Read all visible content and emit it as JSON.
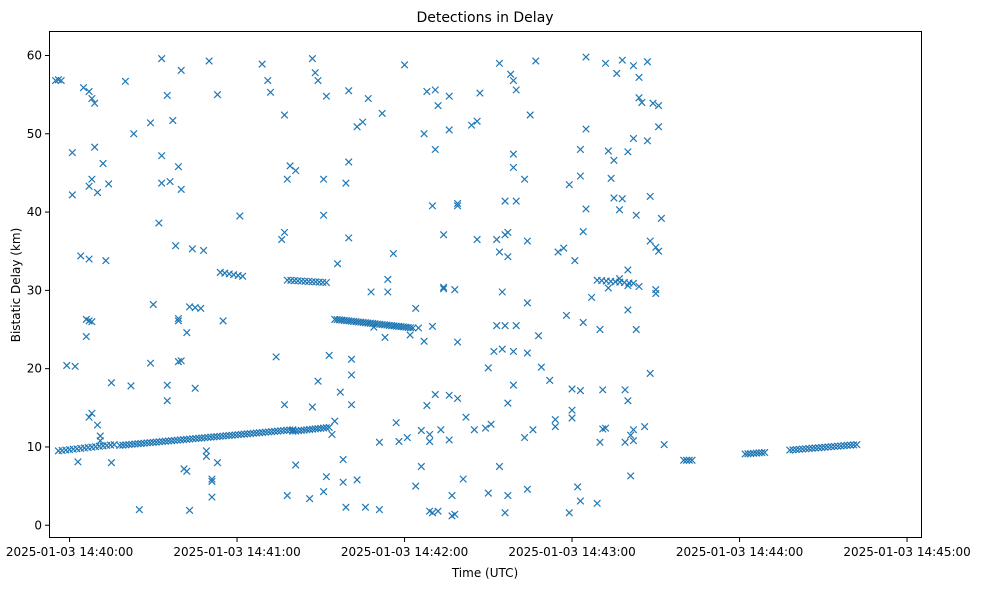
{
  "chart_data": {
    "type": "scatter",
    "title": "Detections in Delay",
    "xlabel": "Time (UTC)",
    "ylabel": "Bistatic Delay (km)",
    "marker": "x",
    "marker_color": "#1f77b4",
    "x_unit": "seconds after 2025-01-03 14:39:53",
    "xlim": [
      "2025-01-03 14:39:53",
      "2025-01-03 14:45:05"
    ],
    "ylim": [
      -1.5,
      63
    ],
    "x_ticks": [
      {
        "value": "2025-01-03 14:40:00",
        "label": "2025-01-03 14:40:00"
      },
      {
        "value": "2025-01-03 14:41:00",
        "label": "2025-01-03 14:41:00"
      },
      {
        "value": "2025-01-03 14:42:00",
        "label": "2025-01-03 14:42:00"
      },
      {
        "value": "2025-01-03 14:43:00",
        "label": "2025-01-03 14:43:00"
      },
      {
        "value": "2025-01-03 14:44:00",
        "label": "2025-01-03 14:44:00"
      },
      {
        "value": "2025-01-03 14:45:00",
        "label": "2025-01-03 14:45:00"
      }
    ],
    "y_ticks": [
      {
        "value": 0,
        "label": "0"
      },
      {
        "value": 10,
        "label": "10"
      },
      {
        "value": 20,
        "label": "20"
      },
      {
        "value": 30,
        "label": "30"
      },
      {
        "value": 40,
        "label": "40"
      },
      {
        "value": 50,
        "label": "50"
      },
      {
        "value": 60,
        "label": "60"
      }
    ],
    "grid": false,
    "track_series": [
      {
        "t_start": "2025-01-03 14:39:56",
        "t_end": "2025-01-03 14:40:16",
        "y_start": 9.5,
        "y_end": 10.3,
        "count": 16
      },
      {
        "t_start": "2025-01-03 14:40:18",
        "t_end": "2025-01-03 14:41:20",
        "y_start": 10.2,
        "y_end": 12.2,
        "count": 58
      },
      {
        "t_start": "2025-01-03 14:41:20",
        "t_end": "2025-01-03 14:41:33",
        "y_start": 12.0,
        "y_end": 12.5,
        "count": 14
      },
      {
        "t_start": "2025-01-03 14:41:18",
        "t_end": "2025-01-03 14:41:32",
        "y_start": 31.3,
        "y_end": 31.0,
        "count": 12
      },
      {
        "t_start": "2025-01-03 14:41:35",
        "t_end": "2025-01-03 14:42:03",
        "y_start": 26.3,
        "y_end": 25.2,
        "count": 34
      },
      {
        "t_start": "2025-01-03 14:40:54",
        "t_end": "2025-01-03 14:41:02",
        "y_start": 32.3,
        "y_end": 31.8,
        "count": 6
      },
      {
        "t_start": "2025-01-03 14:43:09",
        "t_end": "2025-01-03 14:43:22",
        "y_start": 31.3,
        "y_end": 30.9,
        "count": 9
      },
      {
        "t_start": "2025-01-03 14:44:02",
        "t_end": "2025-01-03 14:44:09",
        "y_start": 9.1,
        "y_end": 9.3,
        "count": 8
      },
      {
        "t_start": "2025-01-03 14:44:18",
        "t_end": "2025-01-03 14:44:42",
        "y_start": 9.6,
        "y_end": 10.3,
        "count": 22
      },
      {
        "t_start": "2025-01-03 14:43:40",
        "t_end": "2025-01-03 14:43:43",
        "y_start": 8.3,
        "y_end": 8.3,
        "count": 4
      }
    ],
    "points": [
      [
        2,
        56.8
      ],
      [
        3,
        56.9
      ],
      [
        12,
        55.9
      ],
      [
        14,
        55.4
      ],
      [
        15,
        54.5
      ],
      [
        16,
        53.9
      ],
      [
        4,
        56.8
      ],
      [
        6,
        20.4
      ],
      [
        8,
        47.6
      ],
      [
        9,
        20.3
      ],
      [
        11,
        34.4
      ],
      [
        14,
        34.0
      ],
      [
        14,
        43.3
      ],
      [
        15,
        44.2
      ],
      [
        16,
        48.3
      ],
      [
        17,
        42.5
      ],
      [
        19,
        46.2
      ],
      [
        20,
        33.8
      ],
      [
        21,
        43.6
      ],
      [
        8,
        42.2
      ],
      [
        13,
        24.1
      ],
      [
        13,
        26.3
      ],
      [
        14,
        26.1
      ],
      [
        15,
        26.0
      ],
      [
        14,
        13.8
      ],
      [
        15,
        14.3
      ],
      [
        17,
        12.8
      ],
      [
        18,
        11.4
      ],
      [
        18,
        10.8
      ],
      [
        10,
        8.1
      ],
      [
        22,
        18.2
      ],
      [
        22,
        8.0
      ],
      [
        27,
        56.7
      ],
      [
        29,
        17.8
      ],
      [
        30,
        50.0
      ],
      [
        32,
        2.0
      ],
      [
        36,
        51.4
      ],
      [
        36,
        20.7
      ],
      [
        37,
        28.2
      ],
      [
        39,
        38.6
      ],
      [
        40,
        59.6
      ],
      [
        40,
        47.2
      ],
      [
        40,
        43.7
      ],
      [
        42,
        54.9
      ],
      [
        42,
        17.9
      ],
      [
        42,
        15.9
      ],
      [
        43,
        43.9
      ],
      [
        44,
        51.7
      ],
      [
        45,
        35.7
      ],
      [
        46,
        45.8
      ],
      [
        46,
        26.4
      ],
      [
        46,
        26.1
      ],
      [
        46,
        20.9
      ],
      [
        47,
        21.0
      ],
      [
        47,
        58.1
      ],
      [
        47,
        42.9
      ],
      [
        48,
        7.2
      ],
      [
        49,
        24.6
      ],
      [
        49,
        6.9
      ],
      [
        50,
        27.9
      ],
      [
        50,
        1.9
      ],
      [
        51,
        35.3
      ],
      [
        52,
        27.8
      ],
      [
        52,
        17.5
      ],
      [
        54,
        27.7
      ],
      [
        55,
        35.1
      ],
      [
        56,
        9.5
      ],
      [
        56,
        8.8
      ],
      [
        57,
        59.3
      ],
      [
        58,
        5.9
      ],
      [
        58,
        5.6
      ],
      [
        58,
        3.6
      ],
      [
        60,
        55.0
      ],
      [
        60,
        8.0
      ],
      [
        62,
        26.1
      ],
      [
        68,
        39.5
      ],
      [
        76,
        58.9
      ],
      [
        78,
        56.8
      ],
      [
        79,
        55.3
      ],
      [
        81,
        21.5
      ],
      [
        83,
        36.5
      ],
      [
        84,
        37.4
      ],
      [
        84,
        52.4
      ],
      [
        84,
        15.4
      ],
      [
        85,
        3.8
      ],
      [
        85,
        44.2
      ],
      [
        86,
        45.9
      ],
      [
        88,
        45.3
      ],
      [
        88,
        7.7
      ],
      [
        93,
        3.4
      ],
      [
        94,
        59.6
      ],
      [
        94,
        15.1
      ],
      [
        95,
        57.8
      ],
      [
        96,
        56.8
      ],
      [
        96,
        18.4
      ],
      [
        98,
        39.6
      ],
      [
        98,
        44.2
      ],
      [
        99,
        54.8
      ],
      [
        99,
        6.2
      ],
      [
        98,
        4.3
      ],
      [
        100,
        21.7
      ],
      [
        101,
        11.6
      ],
      [
        102,
        13.3
      ],
      [
        103,
        33.4
      ],
      [
        104,
        17.0
      ],
      [
        105,
        8.4
      ],
      [
        105,
        5.5
      ],
      [
        106,
        2.3
      ],
      [
        106,
        43.7
      ],
      [
        107,
        55.5
      ],
      [
        107,
        46.4
      ],
      [
        107,
        36.7
      ],
      [
        108,
        21.2
      ],
      [
        108,
        19.2
      ],
      [
        108,
        15.4
      ],
      [
        110,
        50.9
      ],
      [
        110,
        5.8
      ],
      [
        112,
        51.5
      ],
      [
        113,
        2.3
      ],
      [
        114,
        54.5
      ],
      [
        115,
        29.8
      ],
      [
        116,
        25.3
      ],
      [
        118,
        10.6
      ],
      [
        118,
        2.0
      ],
      [
        119,
        52.6
      ],
      [
        120,
        24.0
      ],
      [
        121,
        31.4
      ],
      [
        121,
        29.8
      ],
      [
        123,
        34.7
      ],
      [
        124,
        13.1
      ],
      [
        125,
        10.7
      ],
      [
        127,
        58.8
      ],
      [
        128,
        11.2
      ],
      [
        129,
        24.3
      ],
      [
        131,
        27.7
      ],
      [
        131,
        5.0
      ],
      [
        132,
        25.2
      ],
      [
        133,
        7.5
      ],
      [
        133,
        12.1
      ],
      [
        134,
        50.0
      ],
      [
        134,
        23.5
      ],
      [
        135,
        55.4
      ],
      [
        135,
        15.3
      ],
      [
        136,
        11.6
      ],
      [
        136,
        10.7
      ],
      [
        137,
        1.6
      ],
      [
        136,
        1.8
      ],
      [
        137,
        25.4
      ],
      [
        137,
        40.8
      ],
      [
        138,
        55.6
      ],
      [
        138,
        48.0
      ],
      [
        138,
        16.7
      ],
      [
        139,
        1.8
      ],
      [
        139,
        53.6
      ],
      [
        140,
        12.2
      ],
      [
        141,
        30.4
      ],
      [
        141,
        30.2
      ],
      [
        141,
        37.1
      ],
      [
        143,
        54.8
      ],
      [
        143,
        50.5
      ],
      [
        143,
        16.6
      ],
      [
        143,
        10.9
      ],
      [
        144,
        3.8
      ],
      [
        144,
        1.2
      ],
      [
        145,
        30.1
      ],
      [
        145,
        1.4
      ],
      [
        146,
        16.2
      ],
      [
        146,
        23.4
      ],
      [
        146,
        40.8
      ],
      [
        146,
        41.1
      ],
      [
        148,
        5.9
      ],
      [
        149,
        13.8
      ],
      [
        151,
        51.1
      ],
      [
        152,
        12.2
      ],
      [
        153,
        36.5
      ],
      [
        153,
        51.6
      ],
      [
        154,
        55.2
      ],
      [
        156,
        12.4
      ],
      [
        157,
        20.1
      ],
      [
        157,
        4.1
      ],
      [
        158,
        12.9
      ],
      [
        159,
        22.2
      ],
      [
        160,
        25.5
      ],
      [
        160,
        36.5
      ],
      [
        161,
        7.5
      ],
      [
        161,
        59.0
      ],
      [
        161,
        34.9
      ],
      [
        162,
        22.5
      ],
      [
        162,
        29.8
      ],
      [
        163,
        1.6
      ],
      [
        163,
        25.5
      ],
      [
        163,
        41.4
      ],
      [
        163,
        37.1
      ],
      [
        164,
        37.4
      ],
      [
        164,
        34.3
      ],
      [
        164,
        3.8
      ],
      [
        164,
        15.6
      ],
      [
        165,
        57.6
      ],
      [
        166,
        47.4
      ],
      [
        166,
        45.7
      ],
      [
        166,
        56.8
      ],
      [
        166,
        22.2
      ],
      [
        166,
        17.9
      ],
      [
        167,
        41.4
      ],
      [
        167,
        55.6
      ],
      [
        167,
        25.5
      ],
      [
        170,
        44.2
      ],
      [
        170,
        11.2
      ],
      [
        171,
        22.0
      ],
      [
        171,
        36.3
      ],
      [
        171,
        28.4
      ],
      [
        171,
        4.6
      ],
      [
        172,
        52.4
      ],
      [
        173,
        12.2
      ],
      [
        174,
        59.3
      ],
      [
        175,
        24.2
      ],
      [
        176,
        20.2
      ],
      [
        179,
        18.5
      ],
      [
        181,
        13.5
      ],
      [
        181,
        12.6
      ],
      [
        182,
        34.9
      ],
      [
        184,
        35.4
      ],
      [
        185,
        26.8
      ],
      [
        186,
        1.6
      ],
      [
        186,
        43.5
      ],
      [
        187,
        17.4
      ],
      [
        187,
        14.7
      ],
      [
        187,
        13.7
      ],
      [
        188,
        33.8
      ],
      [
        189,
        4.9
      ],
      [
        190,
        44.6
      ],
      [
        190,
        48.0
      ],
      [
        190,
        3.1
      ],
      [
        190,
        17.2
      ],
      [
        191,
        37.5
      ],
      [
        191,
        25.9
      ],
      [
        192,
        50.6
      ],
      [
        192,
        59.8
      ],
      [
        192,
        40.4
      ],
      [
        194,
        29.1
      ],
      [
        196,
        2.8
      ],
      [
        197,
        25.0
      ],
      [
        197,
        10.6
      ],
      [
        198,
        17.3
      ],
      [
        198,
        12.3
      ],
      [
        199,
        12.4
      ],
      [
        199,
        59.0
      ],
      [
        200,
        47.8
      ],
      [
        200,
        30.3
      ],
      [
        201,
        44.3
      ],
      [
        202,
        46.6
      ],
      [
        202,
        41.8
      ],
      [
        203,
        57.7
      ],
      [
        204,
        31.5
      ],
      [
        204,
        40.3
      ],
      [
        205,
        59.4
      ],
      [
        205,
        41.7
      ],
      [
        206,
        17.3
      ],
      [
        206,
        10.6
      ],
      [
        207,
        27.5
      ],
      [
        207,
        47.7
      ],
      [
        207,
        32.6
      ],
      [
        207,
        30.6
      ],
      [
        207,
        15.9
      ],
      [
        208,
        6.3
      ],
      [
        208,
        11.5
      ],
      [
        209,
        58.7
      ],
      [
        209,
        49.4
      ],
      [
        209,
        10.8
      ],
      [
        209,
        12.2
      ],
      [
        210,
        39.6
      ],
      [
        210,
        25.0
      ],
      [
        211,
        57.2
      ],
      [
        211,
        30.5
      ],
      [
        211,
        54.6
      ],
      [
        212,
        54.0
      ],
      [
        213,
        12.6
      ],
      [
        214,
        49.1
      ],
      [
        214,
        59.2
      ],
      [
        215,
        19.4
      ],
      [
        215,
        36.3
      ],
      [
        215,
        42.0
      ],
      [
        216,
        53.9
      ],
      [
        217,
        30.1
      ],
      [
        217,
        35.5
      ],
      [
        217,
        29.6
      ],
      [
        218,
        53.6
      ],
      [
        218,
        35.0
      ],
      [
        218,
        50.9
      ],
      [
        219,
        39.2
      ],
      [
        220,
        10.3
      ]
    ]
  }
}
